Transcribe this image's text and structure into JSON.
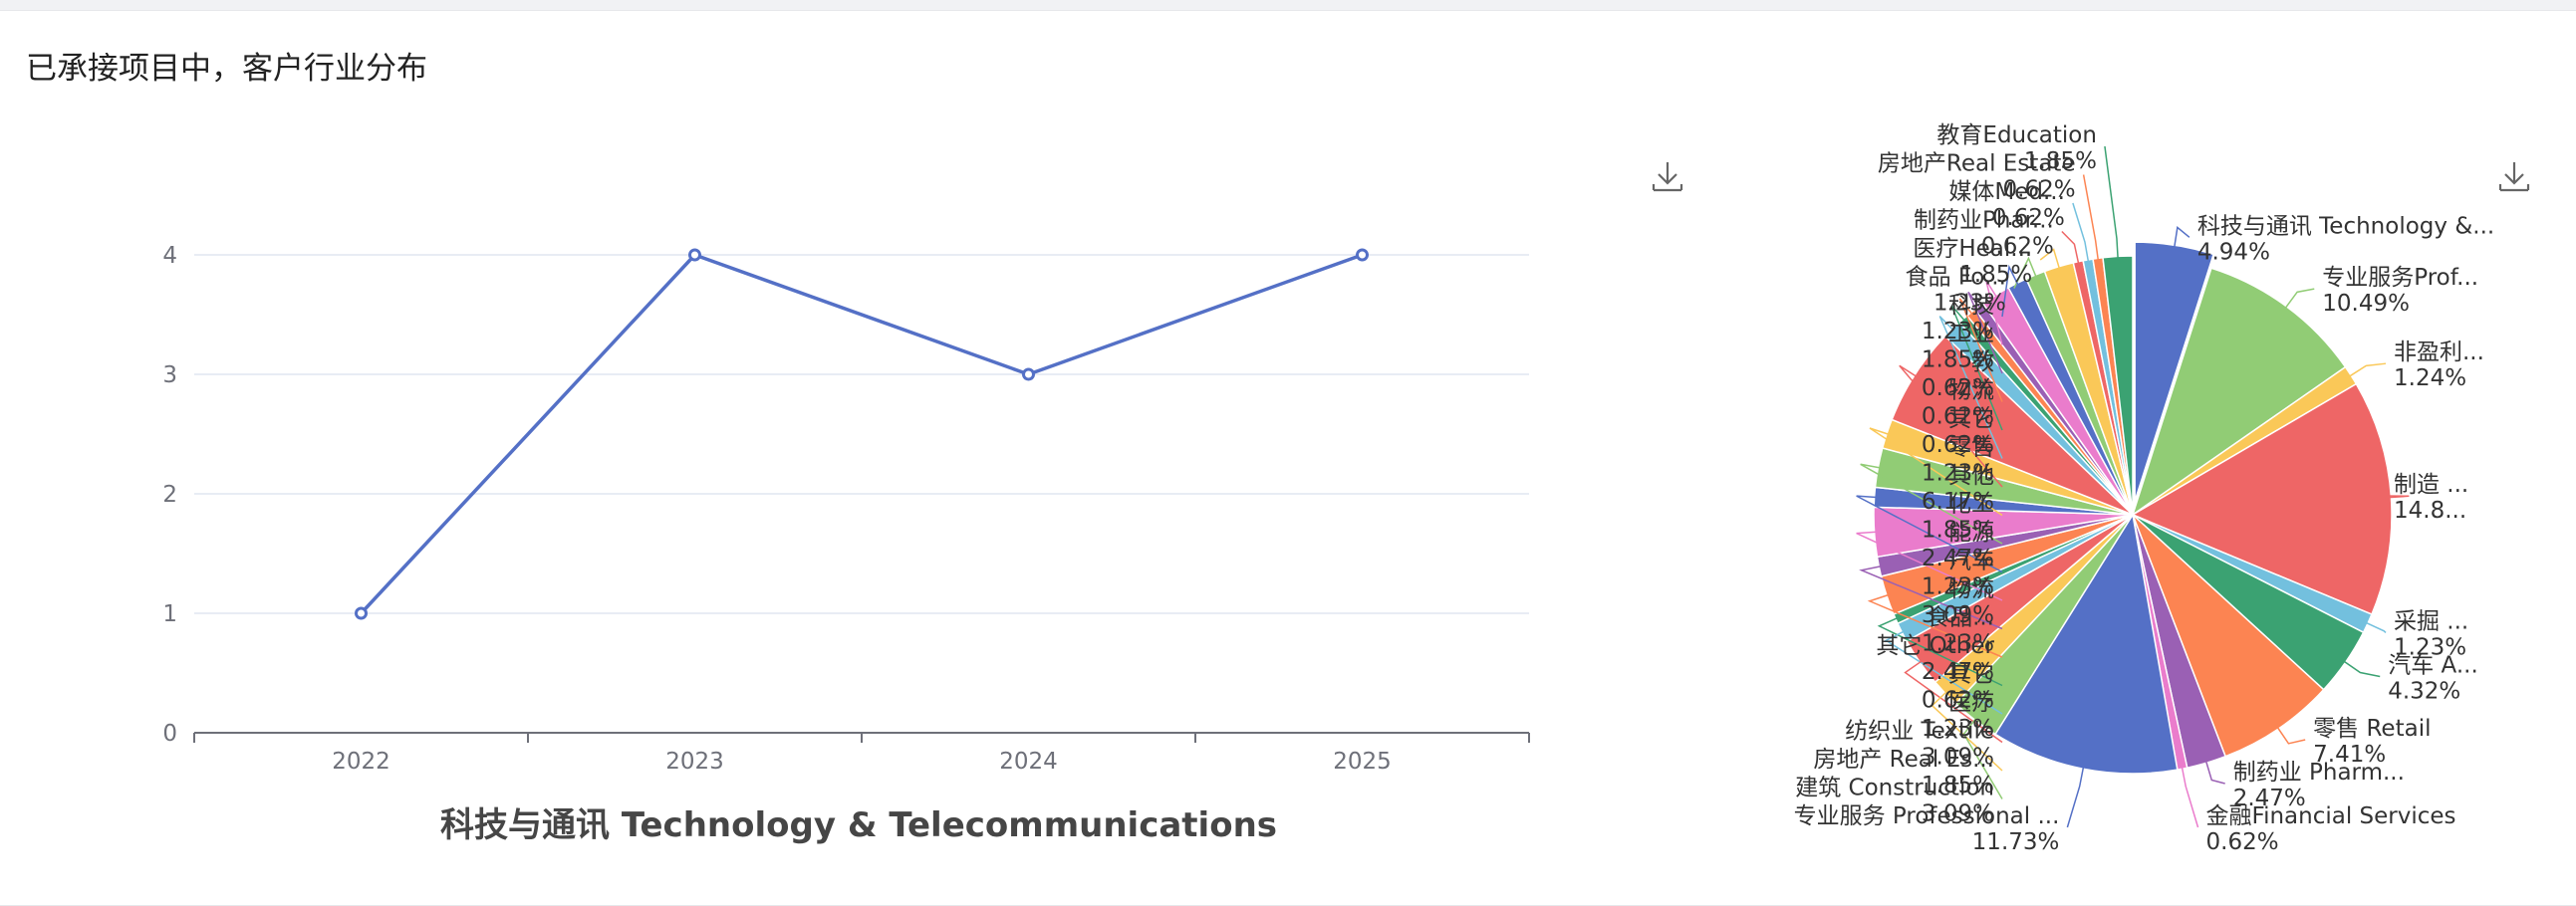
{
  "page": {
    "title": "已承接项目中，客户行业分布"
  },
  "chart_data": [
    {
      "type": "line",
      "title": "科技与通讯 Technology & Telecommunications",
      "categories": [
        "2022",
        "2023",
        "2024",
        "2025"
      ],
      "series": [
        {
          "values": [
            1,
            4,
            3,
            4
          ]
        }
      ],
      "ylim": [
        0,
        4
      ],
      "yticks": [
        0,
        1,
        2,
        3,
        4
      ],
      "grid": true,
      "colors": {
        "line": "#5470c6",
        "grid": "#e0e6f1",
        "axis": "#6e7079"
      }
    },
    {
      "type": "pie",
      "title": "",
      "selected": "科技与通讯 Technology & Telecommunications",
      "slices": [
        {
          "label": "科技与通讯 Technology & Telecommunications",
          "short": "科技与通讯 Technology &...",
          "value": 4.94,
          "display": "4.94%",
          "color": "#5470c6"
        },
        {
          "label": "专业服务Professional Services",
          "short": "专业服务Prof...",
          "value": 10.49,
          "display": "10.49%",
          "color": "#91cc75"
        },
        {
          "label": "非盈利机构",
          "short": "非盈利...",
          "value": 1.24,
          "display": "1.24%",
          "color": "#fac858"
        },
        {
          "label": "制造 Manufacturing",
          "short": "制造 ...",
          "value": 14.81,
          "display": "14.8...",
          "color": "#ee6666"
        },
        {
          "label": "采掘 Mining",
          "short": "采掘 ...",
          "value": 1.23,
          "display": "1.23%",
          "color": "#73c0de"
        },
        {
          "label": "汽车 Automotive",
          "short": "汽车 A...",
          "value": 4.32,
          "display": "4.32%",
          "color": "#3ba272"
        },
        {
          "label": "零售 Retail",
          "short": "零售 Retail",
          "value": 7.41,
          "display": "7.41%",
          "color": "#fc8452"
        },
        {
          "label": "制药业 Pharmaceuticals",
          "short": "制药业 Pharm...",
          "value": 2.47,
          "display": "2.47%",
          "color": "#9a60b4"
        },
        {
          "label": "金融Financial Services",
          "short": "金融Financial Services",
          "value": 0.62,
          "display": "0.62%",
          "color": "#ea7ccc"
        },
        {
          "label": "专业服务 Professional Services",
          "short": "专业服务 Professional ...",
          "value": 11.73,
          "display": "11.73%",
          "color": "#5470c6"
        },
        {
          "label": "建筑 Construction",
          "short": "建筑 Construction",
          "value": 3.09,
          "display": "3.09%",
          "color": "#91cc75"
        },
        {
          "label": "房地产 Real Estate",
          "short": "房地产 Real Es...",
          "value": 1.85,
          "display": "1.85%",
          "color": "#fac858"
        },
        {
          "label": "纺织业 Textile",
          "short": "纺织业 Textile",
          "value": 3.09,
          "display": "3.09%",
          "color": "#ee6666"
        },
        {
          "label": "医疗",
          "short": "医疗",
          "value": 1.23,
          "display": "1.23%",
          "color": "#73c0de"
        },
        {
          "label": "其它",
          "short": "其它",
          "value": 0.62,
          "display": "0.62%",
          "color": "#3ba272"
        },
        {
          "label": "其它 Other",
          "short": "其它 Other",
          "value": 2.47,
          "display": "2.47%",
          "color": "#fc8452"
        },
        {
          "label": "食品",
          "short": "食品...",
          "value": 1.23,
          "display": "1.23%",
          "color": "#9a60b4"
        },
        {
          "label": "物流",
          "short": "物流",
          "value": 3.09,
          "display": "3.09%",
          "color": "#ea7ccc"
        },
        {
          "label": "汽车",
          "short": "汽车",
          "value": 1.23,
          "display": "1.23%",
          "color": "#5470c6"
        },
        {
          "label": "能源",
          "short": "能源",
          "value": 2.47,
          "display": "2.47%",
          "color": "#91cc75"
        },
        {
          "label": "化工",
          "short": "化工",
          "value": 1.85,
          "display": "1.85%",
          "color": "#fac858"
        },
        {
          "label": "其他行业",
          "short": "其他",
          "value": 6.17,
          "display": "6.17%",
          "color": "#ee6666"
        },
        {
          "label": "零售",
          "short": "零售",
          "value": 1.23,
          "display": "1.23%",
          "color": "#73c0de"
        },
        {
          "label": "其它",
          "short": "其它",
          "value": 0.62,
          "display": "0.62%",
          "color": "#3ba272"
        },
        {
          "label": "物流",
          "short": "物流",
          "value": 0.62,
          "display": "0.62%",
          "color": "#fc8452"
        },
        {
          "label": "教育",
          "short": "教",
          "value": 0.62,
          "display": "0.62%",
          "color": "#9a60b4"
        },
        {
          "label": "工业",
          "short": "工业",
          "value": 1.85,
          "display": "1.85%",
          "color": "#ea7ccc"
        },
        {
          "label": "科技",
          "short": "科技",
          "value": 1.23,
          "display": "1.23%",
          "color": "#5470c6"
        },
        {
          "label": "食品 Food",
          "short": "食品 Fo...",
          "value": 1.23,
          "display": "1.23%",
          "color": "#91cc75"
        },
        {
          "label": "医疗 Healthcare",
          "short": "医疗Heal...",
          "value": 1.85,
          "display": "1.85%",
          "color": "#fac858"
        },
        {
          "label": "制药业 Pharmaceuticals",
          "short": "制药业Phar...",
          "value": 0.62,
          "display": "0.62%",
          "color": "#ee6666"
        },
        {
          "label": "媒体 Media",
          "short": "媒体Med...",
          "value": 0.62,
          "display": "0.62%",
          "color": "#73c0de"
        },
        {
          "label": "房地产Real Estate",
          "short": "房地产Real Estate",
          "value": 0.62,
          "display": "0.62%",
          "color": "#fc8452"
        },
        {
          "label": "教育Education",
          "short": "教育Education",
          "value": 1.85,
          "display": "1.85%",
          "color": "#3ba272"
        }
      ]
    }
  ],
  "toolbox": {
    "line_download_icon": "download-icon",
    "pie_download_icon": "download-icon"
  }
}
